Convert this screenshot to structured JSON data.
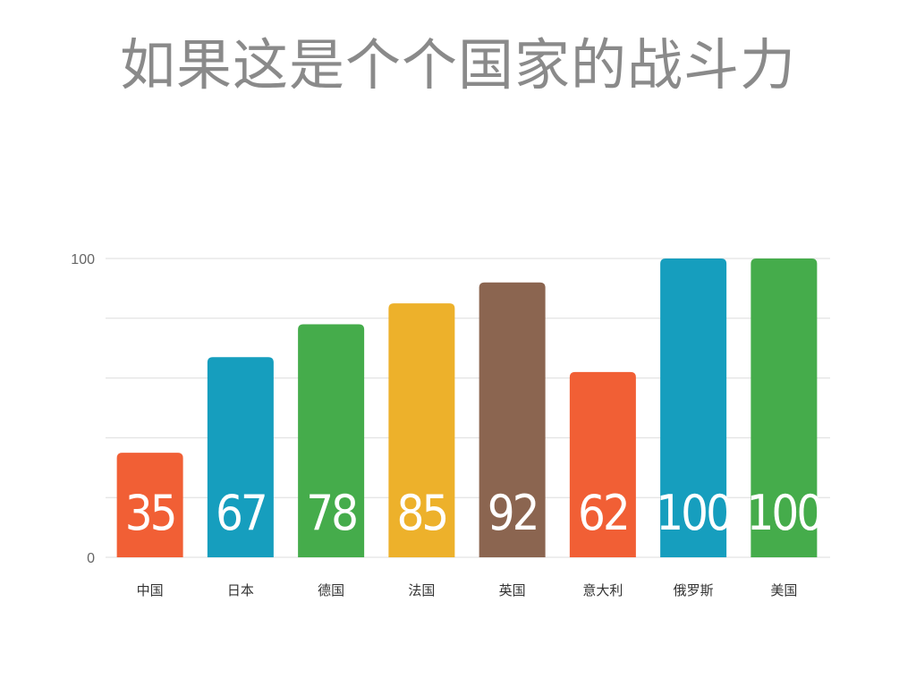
{
  "title": "如果这是个个国家的战斗力",
  "chart_data": {
    "type": "bar",
    "title": "如果这是个个国家的战斗力",
    "categories": [
      "中国",
      "日本",
      "德国",
      "法国",
      "英国",
      "意大利",
      "俄罗斯",
      "美国"
    ],
    "values": [
      35,
      67,
      78,
      85,
      92,
      62,
      100,
      100
    ],
    "colors": [
      "#F15F35",
      "#169EBE",
      "#45AC4B",
      "#EDB12B",
      "#8B6550",
      "#F15F35",
      "#169EBE",
      "#45AC4B"
    ],
    "ylim": [
      0,
      100
    ],
    "yticks": [
      0,
      100
    ],
    "grid": true,
    "data_labels": [
      "35",
      "67",
      "78",
      "85",
      "92",
      "62",
      "100",
      "100"
    ]
  }
}
